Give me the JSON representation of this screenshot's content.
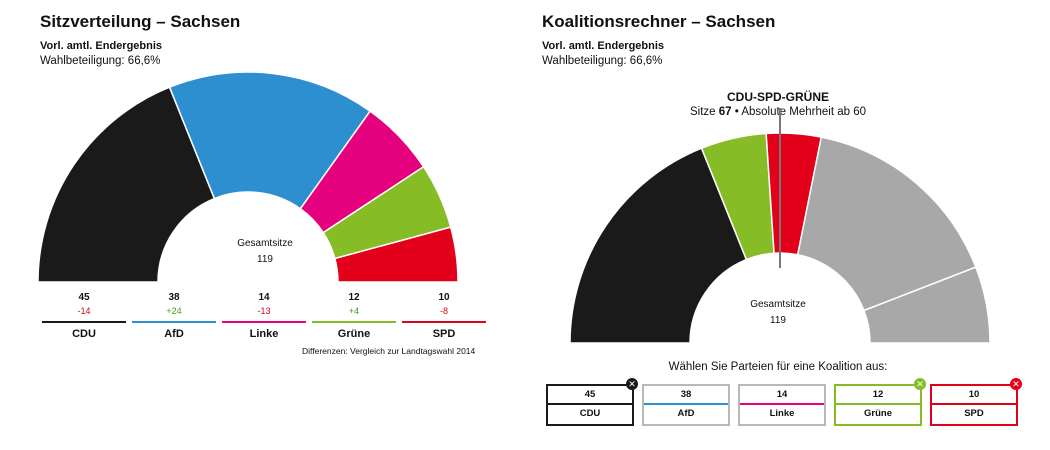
{
  "left": {
    "title": "Sitzverteilung – Sachsen",
    "subtitle": "Vorl. amtl. Endergebnis",
    "turnout": "Wahlbeteiligung: 66,6%",
    "center_title": "Gesamtsitze",
    "center_value": "119",
    "footnote": "Differenzen: Vergleich zur Landtagswahl 2014"
  },
  "right": {
    "title": "Koalitionsrechner – Sachsen",
    "subtitle": "Vorl. amtl. Endergebnis",
    "turnout": "Wahlbeteiligung: 66,6%",
    "coalition_name": "CDU-SPD-GRÜNE",
    "coalition_info_prefix": "Sitze ",
    "coalition_seats": "67",
    "coalition_info_suffix": " • Absolute Mehrheit ab 60",
    "center_title": "Gesamtsitze",
    "center_value": "119",
    "choose_text": "Wählen Sie Parteien für eine Koalition aus:"
  },
  "chart_data": [
    {
      "type": "pie",
      "variant": "half-donut",
      "title": "Sitzverteilung – Sachsen",
      "total": 119,
      "categories": [
        "CDU",
        "AfD",
        "Linke",
        "Grüne",
        "SPD"
      ],
      "values": [
        45,
        38,
        14,
        12,
        10
      ],
      "diffs": [
        "-14",
        "+24",
        "-13",
        "+4",
        "-8"
      ],
      "colors": [
        "#1a1a1a",
        "#2d8fd0",
        "#e5007e",
        "#86bc25",
        "#e2001a"
      ]
    },
    {
      "type": "pie",
      "variant": "half-donut",
      "title": "Koalitionsrechner – Sachsen",
      "total": 119,
      "majority_threshold": 60,
      "categories": [
        "CDU",
        "Grüne",
        "SPD",
        "AfD",
        "Linke"
      ],
      "values": [
        45,
        12,
        10,
        38,
        14
      ],
      "selected": [
        true,
        true,
        true,
        false,
        false
      ],
      "colors": [
        "#1a1a1a",
        "#86bc25",
        "#e2001a",
        "#a8a8a8",
        "#a8a8a8"
      ]
    }
  ],
  "left_parties": [
    {
      "name": "CDU",
      "seats": "45",
      "diff": "-14",
      "color": "#1a1a1a",
      "diff_color": "#e2001a"
    },
    {
      "name": "AfD",
      "seats": "38",
      "diff": "+24",
      "color": "#2d8fd0",
      "diff_color": "#4a9a1a"
    },
    {
      "name": "Linke",
      "seats": "14",
      "diff": "-13",
      "color": "#e5007e",
      "diff_color": "#e2001a"
    },
    {
      "name": "Grüne",
      "seats": "12",
      "diff": "+4",
      "color": "#86bc25",
      "diff_color": "#4a9a1a"
    },
    {
      "name": "SPD",
      "seats": "10",
      "diff": "-8",
      "color": "#e2001a",
      "diff_color": "#e2001a"
    }
  ],
  "right_parties": [
    {
      "name": "CDU",
      "seats": "45",
      "color": "#1a1a1a",
      "selected": true,
      "badge": "✕",
      "badge_color": "#1a1a1a"
    },
    {
      "name": "AfD",
      "seats": "38",
      "color": "#2d8fd0",
      "selected": false
    },
    {
      "name": "Linke",
      "seats": "14",
      "color": "#e5007e",
      "selected": false
    },
    {
      "name": "Grüne",
      "seats": "12",
      "color": "#86bc25",
      "selected": true,
      "badge": "✕",
      "badge_color": "#86bc25"
    },
    {
      "name": "SPD",
      "seats": "10",
      "color": "#e2001a",
      "selected": true,
      "badge": "✕",
      "badge_color": "#e2001a"
    }
  ]
}
